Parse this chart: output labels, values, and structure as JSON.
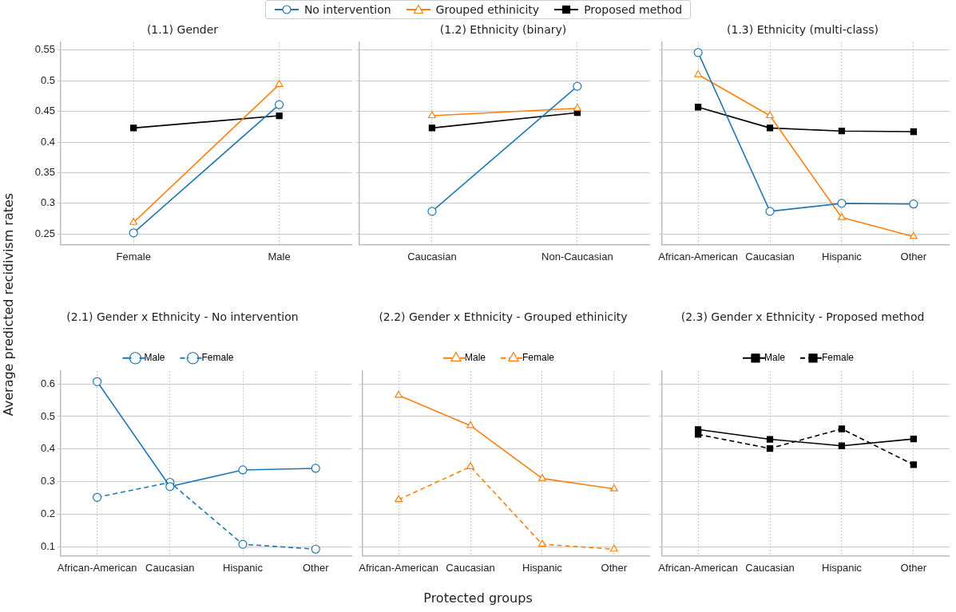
{
  "chart_data": [
    {
      "type": "line",
      "title": "(1.1) Gender",
      "categories": [
        "Female",
        "Male"
      ],
      "ylim": [
        0.233,
        0.563
      ],
      "yticks": [
        0.25,
        0.3,
        0.35,
        0.4,
        0.45,
        0.5,
        0.55
      ],
      "grid": true,
      "series": [
        {
          "color": "#1f77b4",
          "marker": "circle",
          "line_style": "solid",
          "values": [
            0.252,
            0.461
          ]
        },
        {
          "color": "#ff7f0e",
          "marker": "triangle",
          "line_style": "solid",
          "values": [
            0.269,
            0.494
          ]
        },
        {
          "color": "#000000",
          "marker": "square",
          "line_style": "solid",
          "values": [
            0.423,
            0.443
          ]
        }
      ]
    },
    {
      "type": "line",
      "title": "(1.2) Ethnicity (binary)",
      "categories": [
        "Caucasian",
        "Non-Caucasian"
      ],
      "ylim": [
        0.233,
        0.563
      ],
      "yticks": [
        0.25,
        0.3,
        0.35,
        0.4,
        0.45,
        0.5,
        0.55
      ],
      "tick_labels": "x",
      "grid": true,
      "legend": "top",
      "series": [
        {
          "name": "No intervention",
          "color": "#1f77b4",
          "marker": "circle",
          "line_style": "solid",
          "values": [
            0.287,
            0.491
          ]
        },
        {
          "name": "Grouped ethinicity",
          "color": "#ff7f0e",
          "marker": "triangle",
          "line_style": "solid",
          "values": [
            0.443,
            0.455
          ]
        },
        {
          "name": "Proposed method",
          "color": "#000000",
          "marker": "square",
          "line_style": "solid",
          "values": [
            0.423,
            0.448
          ]
        }
      ]
    },
    {
      "type": "line",
      "title": "(1.3) Ethnicity (multi-class)",
      "categories": [
        "African-American",
        "Caucasian",
        "Hispanic",
        "Other"
      ],
      "ylim": [
        0.233,
        0.563
      ],
      "yticks": [
        0.25,
        0.3,
        0.35,
        0.4,
        0.45,
        0.5,
        0.55
      ],
      "tick_labels": "x",
      "grid": true,
      "series": [
        {
          "color": "#1f77b4",
          "marker": "circle",
          "line_style": "solid",
          "values": [
            0.546,
            0.287,
            0.3,
            0.299
          ]
        },
        {
          "color": "#ff7f0e",
          "marker": "triangle",
          "line_style": "solid",
          "values": [
            0.51,
            0.443,
            0.277,
            0.246
          ]
        },
        {
          "color": "#000000",
          "marker": "square",
          "line_style": "solid",
          "values": [
            0.457,
            0.423,
            0.418,
            0.417
          ]
        }
      ]
    },
    {
      "type": "line",
      "title": "(2.1) Gender x Ethnicity - No intervention",
      "ylabel": "Average predicted recidivism rates",
      "categories": [
        "African-American",
        "Caucasian",
        "Hispanic",
        "Other"
      ],
      "ylim": [
        0.073,
        0.64
      ],
      "yticks": [
        0.1,
        0.2,
        0.3,
        0.4,
        0.5,
        0.6
      ],
      "grid": true,
      "legend": "top",
      "series": [
        {
          "name": "Male",
          "color": "#1f77b4",
          "marker": "circle",
          "line_style": "solid",
          "values": [
            0.607,
            0.285,
            0.336,
            0.341
          ]
        },
        {
          "name": "Female",
          "color": "#1f77b4",
          "marker": "circle",
          "line_style": "dashed",
          "values": [
            0.252,
            0.298,
            0.108,
            0.093
          ]
        }
      ]
    },
    {
      "type": "line",
      "title": "(2.2) Gender x Ethnicity - Grouped ethinicity",
      "xlabel": "Protected groups",
      "categories": [
        "African-American",
        "Caucasian",
        "Hispanic",
        "Other"
      ],
      "ylim": [
        0.073,
        0.64
      ],
      "yticks": [
        0.1,
        0.2,
        0.3,
        0.4,
        0.5,
        0.6
      ],
      "tick_labels": "x",
      "grid": true,
      "legend": "top",
      "series": [
        {
          "name": "Male",
          "color": "#ff7f0e",
          "marker": "triangle",
          "line_style": "solid",
          "values": [
            0.565,
            0.472,
            0.31,
            0.278
          ]
        },
        {
          "name": "Female",
          "color": "#ff7f0e",
          "marker": "triangle",
          "line_style": "dashed",
          "values": [
            0.245,
            0.346,
            0.108,
            0.093
          ]
        }
      ]
    },
    {
      "type": "line",
      "title": "(2.3) Gender x Ethnicity - Proposed method",
      "categories": [
        "African-American",
        "Caucasian",
        "Hispanic",
        "Other"
      ],
      "ylim": [
        0.073,
        0.64
      ],
      "yticks": [
        0.1,
        0.2,
        0.3,
        0.4,
        0.5,
        0.6
      ],
      "tick_labels": "x",
      "grid": true,
      "legend": "top",
      "series": [
        {
          "name": "Male",
          "color": "#000000",
          "marker": "square",
          "line_style": "solid",
          "values": [
            0.46,
            0.43,
            0.41,
            0.431
          ]
        },
        {
          "name": "Female",
          "color": "#000000",
          "marker": "square",
          "line_style": "dashed",
          "values": [
            0.445,
            0.402,
            0.462,
            0.352
          ]
        }
      ]
    }
  ]
}
